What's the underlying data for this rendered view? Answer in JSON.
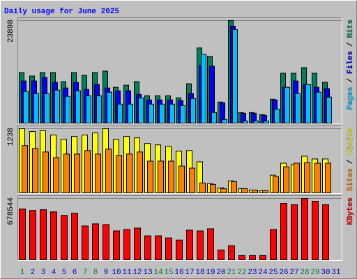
{
  "chart_data": [
    {
      "type": "bar",
      "title": "Daily usage for June 2025",
      "legend_separator": "/",
      "ylim": [
        0,
        23898
      ],
      "yticks": [
        23898
      ],
      "series": [
        {
          "name": "Hits",
          "color": "#00805c",
          "values": [
            11870,
            11057,
            11870,
            11870,
            9756,
            11870,
            11219,
            11870,
            12195,
            8455,
            8943,
            9756,
            6504,
            6504,
            6504,
            6016,
            9268,
            17561,
            15610,
            5041,
            23898,
            2602,
            2602,
            2114,
            5691,
            11707,
            11707,
            13008,
            11707,
            9593,
            0
          ]
        },
        {
          "name": "Files",
          "color": "#0000ff",
          "values": [
            9919,
            9919,
            10732,
            9593,
            8293,
            9593,
            7967,
            9106,
            8293,
            7642,
            7642,
            6829,
            5528,
            5528,
            5528,
            5366,
            6992,
            13496,
            13333,
            4878,
            22601,
            2439,
            2439,
            1951,
            5528,
            8455,
            9919,
            9106,
            8455,
            8130,
            0
          ]
        },
        {
          "name": "Pages",
          "color": "#00c0ff",
          "values": [
            7480,
            6992,
            6992,
            7805,
            6341,
            7642,
            6504,
            6504,
            7317,
            4553,
            4553,
            6016,
            4553,
            4553,
            4553,
            4228,
            5854,
            16097,
            2602,
            976,
            21788,
            650,
            650,
            650,
            3415,
            8455,
            6992,
            9106,
            7317,
            6179,
            0
          ]
        }
      ]
    },
    {
      "type": "bar",
      "legend_separator": "/",
      "ylim": [
        0,
        1238
      ],
      "yticks": [
        1238
      ],
      "series": [
        {
          "name": "Visits",
          "color": "#ffff00",
          "values": [
            1238,
            1184,
            1198,
            1117,
            1036,
            1090,
            1117,
            1157,
            1238,
            1036,
            1090,
            1063,
            956,
            929,
            902,
            808,
            821,
            606,
            188,
            108,
            242,
            94,
            67,
            54,
            350,
            579,
            552,
            713,
            660,
            660,
            0
          ]
        },
        {
          "name": "Sites",
          "color": "#ff8000",
          "values": [
            915,
            861,
            794,
            686,
            754,
            754,
            821,
            754,
            848,
            727,
            754,
            794,
            619,
            619,
            619,
            525,
            485,
            202,
            175,
            94,
            229,
            94,
            67,
            54,
            323,
            511,
            579,
            592,
            579,
            579,
            0
          ]
        }
      ]
    },
    {
      "type": "bar",
      "ylim": [
        0,
        678544
      ],
      "yticks": [
        678544
      ],
      "categories": [
        "1",
        "2",
        "3",
        "4",
        "5",
        "6",
        "7",
        "8",
        "9",
        "10",
        "11",
        "12",
        "13",
        "14",
        "15",
        "16",
        "17",
        "18",
        "19",
        "20",
        "21",
        "22",
        "23",
        "24",
        "25",
        "26",
        "27",
        "28",
        "29",
        "30",
        "31"
      ],
      "category_colors": [
        "#008040",
        "#0000c0",
        "#0000c0",
        "#0000c0",
        "#0000c0",
        "#0000c0",
        "#008040",
        "#008040",
        "#0000c0",
        "#0000c0",
        "#0000c0",
        "#0000c0",
        "#0000c0",
        "#008040",
        "#008040",
        "#0000c0",
        "#0000c0",
        "#0000c0",
        "#0000c0",
        "#0000c0",
        "#008040",
        "#008040",
        "#0000c0",
        "#0000c0",
        "#0000c0",
        "#0000c0",
        "#0000c0",
        "#008040",
        "#008040",
        "#0000c0",
        "#0000c0"
      ],
      "series": [
        {
          "name": "KBytes",
          "color": "#ff0000",
          "values": [
            562903,
            547481,
            555192,
            532059,
            493504,
            516637,
            377839,
            400972,
            393261,
            323862,
            339284,
            354706,
            269885,
            269885,
            246752,
            223619,
            331573,
            323862,
            346995,
            115665,
            161931,
            53977,
            53977,
            53977,
            339284,
            624591,
            609169,
            678544,
            647724,
            609169,
            0
          ]
        }
      ]
    }
  ]
}
